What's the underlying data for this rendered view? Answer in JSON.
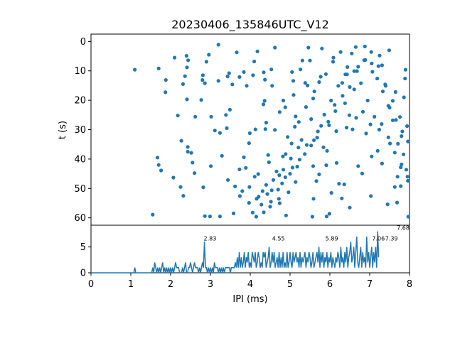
{
  "figure": {
    "background": "#ffffff",
    "accent": "#1f77b4"
  },
  "chart_data": [
    {
      "type": "scatter",
      "title": "20230406_135846UTC_V12",
      "xlabel": "",
      "ylabel": "t (s)",
      "xlim": [
        0,
        8
      ],
      "ylim": [
        62.5,
        -2.5
      ],
      "y_inverted": true,
      "yticks": [
        0,
        10,
        20,
        30,
        40,
        50,
        60
      ],
      "xticks_shown": false,
      "grid": false,
      "color": "#1f77b4",
      "marker": "circle",
      "points": [
        [
          1.1,
          9.6
        ],
        [
          1.55,
          58.9
        ],
        [
          1.7,
          9.2
        ],
        [
          1.87,
          17.3
        ],
        [
          1.88,
          13.1
        ],
        [
          2.1,
          5.5
        ],
        [
          2.31,
          14.5
        ],
        [
          2.36,
          11.8
        ],
        [
          2.4,
          4.9
        ],
        [
          2.44,
          6.4
        ],
        [
          2.41,
          8.8
        ],
        [
          2.41,
          19.7
        ],
        [
          2.43,
          35.9
        ],
        [
          2.43,
          37.5
        ],
        [
          2.52,
          37.9
        ],
        [
          2.55,
          41.2
        ],
        [
          2.6,
          44.8
        ],
        [
          2.62,
          25.6
        ],
        [
          2.77,
          19.9
        ],
        [
          2.8,
          13.1
        ],
        [
          2.81,
          11.5
        ],
        [
          2.86,
          14.2
        ],
        [
          2.9,
          6.9
        ],
        [
          2.96,
          4.5
        ],
        [
          2.99,
          59.5
        ],
        [
          3.01,
          42.4
        ],
        [
          3.02,
          25.6
        ],
        [
          3.2,
          1.1
        ],
        [
          3.24,
          31.1
        ],
        [
          3.24,
          59.5
        ],
        [
          3.2,
          13.4
        ],
        [
          3.29,
          38.9
        ],
        [
          3.39,
          25.0
        ],
        [
          3.41,
          29.5
        ],
        [
          3.43,
          11.9
        ],
        [
          3.47,
          10.8
        ],
        [
          3.49,
          23.2
        ],
        [
          3.66,
          3.7
        ],
        [
          3.73,
          12.1
        ],
        [
          3.73,
          43.5
        ],
        [
          3.84,
          10.4
        ],
        [
          3.89,
          43.0
        ],
        [
          3.97,
          34.6
        ],
        [
          3.91,
          15.1
        ],
        [
          3.99,
          31.2
        ],
        [
          4.07,
          11.5
        ],
        [
          4.1,
          6.8
        ],
        [
          4.13,
          29.9
        ],
        [
          4.18,
          3.4
        ],
        [
          4.34,
          10.5
        ],
        [
          4.37,
          13.0
        ],
        [
          4.38,
          29.8
        ],
        [
          4.31,
          50.9
        ],
        [
          4.47,
          41.1
        ],
        [
          4.53,
          9.5
        ],
        [
          4.55,
          15.1
        ],
        [
          4.62,
          2.1
        ],
        [
          4.72,
          53.5
        ],
        [
          4.74,
          55.0
        ],
        [
          4.8,
          48.3
        ],
        [
          4.83,
          20.1
        ],
        [
          4.83,
          43.6
        ],
        [
          4.9,
          59.2
        ],
        [
          4.96,
          51.3
        ],
        [
          5.02,
          39.8
        ],
        [
          5.05,
          10.4
        ],
        [
          5.08,
          13.4
        ],
        [
          5.12,
          29.0
        ],
        [
          5.14,
          25.5
        ],
        [
          5.26,
          9.5
        ],
        [
          5.21,
          36.1
        ],
        [
          5.29,
          33.5
        ],
        [
          5.46,
          2.1
        ],
        [
          5.44,
          15.0
        ],
        [
          5.5,
          6.5
        ],
        [
          5.59,
          53.5
        ],
        [
          5.58,
          42.4
        ],
        [
          5.61,
          17.0
        ],
        [
          5.68,
          32.7
        ],
        [
          5.66,
          47.5
        ],
        [
          5.8,
          2.4
        ],
        [
          5.84,
          36.0
        ],
        [
          5.91,
          42.1
        ],
        [
          5.92,
          59.5
        ],
        [
          5.98,
          28.5
        ],
        [
          6.09,
          5.5
        ],
        [
          6.04,
          51.5
        ],
        [
          6.12,
          21.6
        ],
        [
          6.17,
          41.3
        ],
        [
          6.3,
          53.4
        ],
        [
          6.36,
          48.6
        ],
        [
          6.31,
          14.1
        ],
        [
          6.49,
          25.1
        ],
        [
          6.42,
          29.3
        ],
        [
          6.5,
          56.5
        ],
        [
          6.57,
          29.9
        ],
        [
          6.65,
          1.9
        ],
        [
          6.71,
          42.4
        ],
        [
          6.83,
          23.9
        ],
        [
          6.91,
          31.3
        ],
        [
          7.02,
          28.2
        ],
        [
          7.05,
          39.1
        ],
        [
          7.2,
          37.2
        ],
        [
          7.25,
          4.8
        ],
        [
          7.31,
          8.1
        ],
        [
          7.39,
          14.6
        ],
        [
          7.47,
          21.9
        ],
        [
          7.49,
          3.0
        ],
        [
          7.58,
          26.8
        ],
        [
          7.63,
          49.5
        ],
        [
          7.71,
          34.8
        ],
        [
          7.69,
          54.8
        ],
        [
          7.78,
          42.8
        ],
        [
          7.78,
          49.2
        ],
        [
          7.8,
          32.2
        ],
        [
          7.86,
          19.0
        ],
        [
          7.89,
          12.6
        ],
        [
          7.92,
          43.6
        ],
        [
          7.95,
          46.0
        ],
        [
          7.97,
          59.6
        ],
        [
          3.84,
          39.4
        ],
        [
          4.11,
          46.0
        ],
        [
          4.36,
          20.2
        ],
        [
          4.54,
          50.6
        ],
        [
          4.74,
          24.0
        ],
        [
          4.94,
          32.5
        ],
        [
          5.14,
          47.8
        ],
        [
          5.38,
          14.1
        ],
        [
          5.56,
          59.6
        ],
        [
          5.77,
          12.0
        ],
        [
          5.99,
          58.6
        ],
        [
          6.23,
          48.4
        ],
        [
          6.43,
          11.2
        ],
        [
          6.66,
          26.0
        ],
        [
          6.89,
          6.3
        ],
        [
          7.07,
          10.3
        ],
        [
          7.31,
          41.5
        ],
        [
          7.51,
          34.7
        ],
        [
          7.7,
          46.0
        ],
        [
          7.9,
          9.6
        ],
        [
          3.58,
          58.5
        ],
        [
          3.74,
          52.6
        ],
        [
          3.97,
          54.9
        ],
        [
          4.2,
          45.1
        ],
        [
          4.45,
          38.6
        ],
        [
          4.62,
          30.1
        ],
        [
          4.88,
          22.4
        ],
        [
          5.09,
          18.2
        ],
        [
          5.31,
          6.5
        ],
        [
          5.53,
          26.4
        ],
        [
          5.73,
          45.2
        ],
        [
          5.93,
          37.2
        ],
        [
          6.16,
          30.5
        ],
        [
          6.38,
          21.0
        ],
        [
          6.61,
          16.3
        ],
        [
          6.81,
          44.9
        ],
        [
          7.03,
          52.6
        ],
        [
          7.24,
          30.0
        ],
        [
          7.45,
          55.4
        ],
        [
          7.65,
          17.2
        ],
        [
          7.85,
          38.4
        ],
        [
          4.06,
          58.2
        ],
        [
          4.21,
          52.8
        ],
        [
          4.4,
          48.8
        ],
        [
          4.5,
          56.2
        ],
        [
          4.66,
          44.2
        ],
        [
          4.82,
          39.1
        ],
        [
          5.0,
          45.0
        ],
        [
          5.18,
          42.6
        ],
        [
          5.37,
          38.3
        ],
        [
          5.53,
          35.4
        ],
        [
          5.7,
          30.6
        ],
        [
          5.86,
          24.9
        ],
        [
          6.03,
          20.1
        ],
        [
          6.21,
          15.1
        ],
        [
          6.39,
          11.2
        ],
        [
          6.55,
          4.1
        ],
        [
          6.71,
          8.6
        ],
        [
          6.88,
          1.7
        ],
        [
          7.05,
          7.5
        ],
        [
          7.19,
          12.6
        ],
        [
          7.33,
          17.0
        ],
        [
          7.5,
          22.5
        ],
        [
          7.66,
          26.7
        ],
        [
          7.82,
          30.6
        ],
        [
          7.96,
          34.0
        ],
        [
          4.15,
          59.6
        ],
        [
          4.28,
          55.5
        ],
        [
          4.43,
          51.9
        ],
        [
          4.58,
          47.1
        ],
        [
          4.73,
          45.5
        ],
        [
          4.89,
          38.3
        ],
        [
          5.04,
          34.7
        ],
        [
          5.22,
          27.4
        ],
        [
          5.4,
          22.3
        ],
        [
          5.58,
          19.4
        ],
        [
          5.73,
          13.8
        ],
        [
          5.9,
          11.1
        ],
        [
          6.08,
          6.9
        ],
        [
          6.27,
          3.6
        ],
        [
          6.44,
          8.7
        ],
        [
          6.61,
          10.1
        ],
        [
          6.78,
          14.2
        ],
        [
          6.95,
          20.1
        ],
        [
          7.12,
          25.6
        ],
        [
          7.3,
          28.1
        ],
        [
          7.47,
          32.6
        ],
        [
          7.63,
          37.8
        ],
        [
          7.8,
          41.8
        ],
        [
          7.96,
          47.4
        ],
        [
          3.44,
          47.1
        ],
        [
          3.62,
          49.3
        ],
        [
          3.8,
          50.9
        ],
        [
          3.98,
          49.5
        ],
        [
          4.16,
          53.5
        ],
        [
          4.34,
          58.1
        ],
        [
          4.52,
          54.5
        ],
        [
          4.7,
          50.4
        ],
        [
          4.88,
          46.2
        ],
        [
          5.06,
          42.9
        ],
        [
          5.24,
          40.2
        ],
        [
          5.42,
          35.2
        ],
        [
          5.6,
          33.6
        ],
        [
          5.78,
          28.7
        ],
        [
          5.96,
          27.3
        ],
        [
          6.14,
          23.7
        ],
        [
          6.32,
          18.5
        ],
        [
          6.5,
          15.5
        ],
        [
          6.68,
          10.1
        ],
        [
          6.86,
          6.4
        ],
        [
          7.04,
          3.6
        ],
        [
          7.22,
          8.4
        ],
        [
          7.4,
          15.1
        ],
        [
          7.58,
          20.2
        ],
        [
          7.76,
          25.7
        ],
        [
          7.94,
          28.8
        ],
        [
          3.11,
          30.3
        ],
        [
          3.55,
          14.6
        ],
        [
          2.27,
          33.8
        ],
        [
          2.18,
          25.2
        ],
        [
          2.07,
          46.3
        ],
        [
          2.25,
          49.5
        ],
        [
          1.67,
          39.5
        ],
        [
          1.7,
          42.0
        ],
        [
          1.76,
          43.9
        ],
        [
          2.32,
          52.5
        ],
        [
          2.82,
          49.6
        ],
        [
          2.86,
          59.4
        ],
        [
          4.33,
          21.4
        ],
        [
          4.4,
          27.6
        ]
      ]
    },
    {
      "type": "line",
      "title": "",
      "xlabel": "IPI (ms)",
      "ylabel": "",
      "xlim": [
        0,
        8
      ],
      "ylim": [
        0,
        9.2
      ],
      "xticks": [
        0,
        1,
        2,
        3,
        4,
        5,
        6,
        7,
        8
      ],
      "yticks": [
        0,
        5
      ],
      "grid": false,
      "color": "#1f77b4",
      "bin_width": 0.025,
      "x_start": 0,
      "counts": [
        0,
        0,
        0,
        0,
        0,
        0,
        0,
        0,
        0,
        0,
        0,
        0,
        0,
        0,
        0,
        0,
        0,
        0,
        0,
        0,
        0,
        0,
        0,
        0,
        0,
        0,
        0,
        0,
        0,
        0,
        0,
        0,
        0,
        0,
        0,
        0,
        0,
        0,
        0,
        0,
        0,
        0,
        0,
        0,
        1,
        0,
        0,
        0,
        0,
        0,
        0,
        0,
        0,
        0,
        0,
        0,
        0,
        0,
        0,
        0,
        0,
        0,
        1,
        0,
        2,
        1,
        0,
        1,
        0,
        1,
        0,
        1,
        2,
        0,
        1,
        0,
        1,
        0,
        1,
        0,
        1,
        0,
        1,
        0,
        1,
        2,
        1,
        1,
        1,
        0,
        0,
        0,
        1,
        0,
        1,
        2,
        0,
        0,
        1,
        1,
        2,
        1,
        0,
        1,
        2,
        1,
        1,
        1,
        0,
        1,
        0,
        1,
        2,
        1,
        6,
        1,
        1,
        0,
        1,
        0,
        1,
        0,
        1,
        0,
        2,
        1,
        1,
        1,
        0,
        1,
        0,
        1,
        0,
        1,
        0,
        1,
        1,
        1,
        1,
        1,
        0,
        1,
        1,
        1,
        1,
        2,
        1,
        3,
        1,
        4,
        1,
        3,
        1,
        2,
        4,
        1,
        3,
        2,
        4,
        1,
        2,
        1,
        4,
        3,
        2,
        4,
        1,
        2,
        4,
        3,
        1,
        2,
        1,
        4,
        3,
        4,
        1,
        2,
        3,
        5,
        1,
        2,
        4,
        2,
        4,
        1,
        2,
        3,
        1,
        4,
        1,
        3,
        1,
        4,
        1,
        2,
        1,
        4,
        1,
        2,
        4,
        2,
        1,
        4,
        2,
        3,
        4,
        2,
        3,
        1,
        4,
        1,
        3,
        2,
        3,
        4,
        1,
        3,
        2,
        4,
        3,
        1,
        2,
        4,
        1,
        2,
        3,
        4,
        2,
        5,
        1,
        4,
        2,
        4,
        1,
        3,
        2,
        4,
        1,
        3,
        2,
        4,
        1,
        3,
        2,
        1,
        3,
        2,
        4,
        3,
        1,
        5,
        2,
        3,
        1,
        4,
        2,
        5,
        1,
        3,
        4,
        6,
        2,
        3,
        5,
        1,
        4,
        7,
        2,
        1,
        3,
        5,
        1,
        4,
        2,
        3,
        1,
        7,
        2,
        4,
        1,
        3,
        5,
        1,
        4,
        2,
        5,
        1,
        8,
        3
      ],
      "annotations": [
        {
          "x": 2.83,
          "y": 6,
          "label": "2.83"
        },
        {
          "x": 4.55,
          "y": 6,
          "label": "4.55"
        },
        {
          "x": 5.89,
          "y": 6,
          "label": "5.89"
        },
        {
          "x": 7.06,
          "y": 6,
          "label": "7.06"
        },
        {
          "x": 7.39,
          "y": 6,
          "label": "7.39"
        },
        {
          "x": 7.68,
          "y": 8,
          "label": "7.68"
        }
      ]
    }
  ]
}
